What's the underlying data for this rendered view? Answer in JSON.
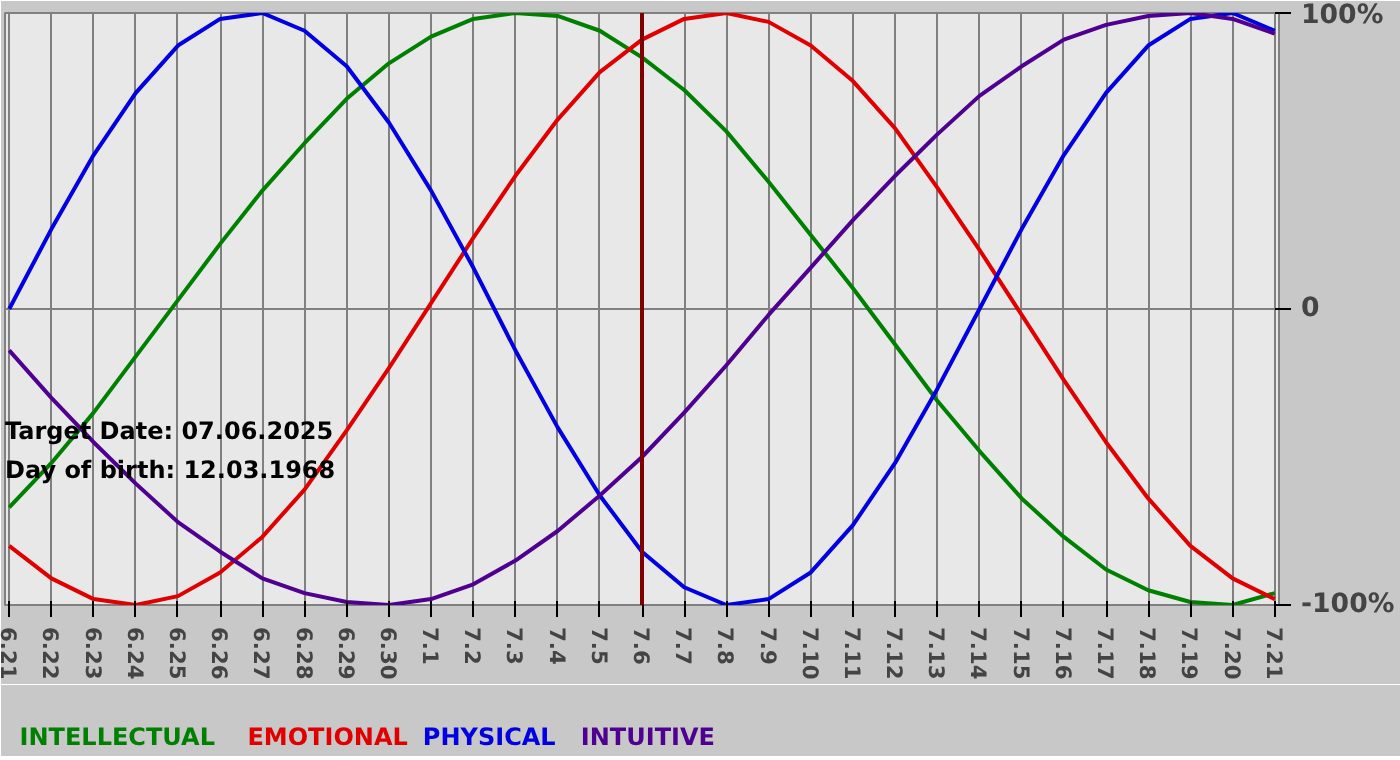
{
  "chart_data": {
    "type": "line",
    "categories": [
      "6.21",
      "6.22",
      "6.23",
      "6.24",
      "6.25",
      "6.26",
      "6.27",
      "6.28",
      "6.29",
      "6.30",
      "7.1",
      "7.2",
      "7.3",
      "7.4",
      "7.5",
      "7.6",
      "7.7",
      "7.8",
      "7.9",
      "7.10",
      "7.11",
      "7.12",
      "7.13",
      "7.14",
      "7.15",
      "7.16",
      "7.17",
      "7.18",
      "7.19",
      "7.20",
      "7.21"
    ],
    "series": [
      {
        "name": "INTELLECTUAL",
        "color": "#008000",
        "values": [
          -67,
          -52,
          -35,
          -16,
          3,
          22,
          40,
          56,
          71,
          83,
          92,
          98,
          100,
          99,
          94,
          85,
          74,
          60,
          43,
          25,
          7,
          -12,
          -31,
          -48,
          -64,
          -77,
          -88,
          -95,
          -99,
          -100,
          -96
        ]
      },
      {
        "name": "EMOTIONAL",
        "color": "#e00000",
        "values": [
          -80,
          -91,
          -98,
          -100,
          -97,
          -89,
          -77,
          -61,
          -41,
          -20,
          2,
          24,
          45,
          64,
          80,
          91,
          98,
          100,
          97,
          89,
          77,
          61,
          41,
          20,
          -2,
          -24,
          -45,
          -64,
          -80,
          -91,
          -98
        ]
      },
      {
        "name": "PHYSICAL",
        "color": "#0000e0",
        "values": [
          0,
          27,
          52,
          73,
          89,
          98,
          100,
          94,
          82,
          63,
          40,
          14,
          -14,
          -40,
          -63,
          -82,
          -94,
          -100,
          -98,
          -89,
          -73,
          -52,
          -27,
          0,
          27,
          52,
          73,
          89,
          98,
          100,
          94
        ]
      },
      {
        "name": "INTUITIVE",
        "color": "#500090",
        "values": [
          -14,
          -30,
          -45,
          -59,
          -72,
          -82,
          -91,
          -96,
          -99,
          -100,
          -98,
          -93,
          -85,
          -75,
          -63,
          -50,
          -35,
          -19,
          -2,
          14,
          30,
          45,
          59,
          72,
          82,
          91,
          96,
          99,
          100,
          98,
          93
        ]
      }
    ],
    "ylim": [
      -100,
      100
    ],
    "yticks": [
      {
        "value": 100,
        "label": "100%"
      },
      0,
      {
        "value": -100,
        "label": "-100%"
      }
    ],
    "ref_lines": [
      {
        "axis": "x",
        "value": "7.6",
        "color": "#800000"
      }
    ],
    "annotations": [
      "Target Date: 07.06.2025",
      "Day of birth: 12.03.1968"
    ],
    "grid": true,
    "legend": "bottom",
    "marker": "none",
    "line_style": "solid"
  }
}
